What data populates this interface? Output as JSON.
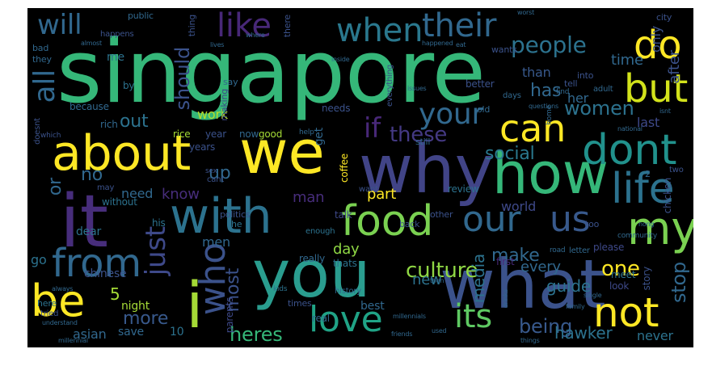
{
  "title": "",
  "words": [
    {
      "text": "singapore",
      "color": "#35b779",
      "vertical": false
    },
    {
      "text": "you",
      "color": "#2a9d8f",
      "vertical": false
    },
    {
      "text": "what",
      "color": "#3b528b",
      "vertical": false
    },
    {
      "text": "it",
      "color": "#472d7b",
      "vertical": false
    },
    {
      "text": "with",
      "color": "#2c728e",
      "vertical": false
    },
    {
      "text": "we",
      "color": "#fde725",
      "vertical": false
    },
    {
      "text": "why",
      "color": "#414487",
      "vertical": false
    },
    {
      "text": "how",
      "color": "#35b779",
      "vertical": false
    },
    {
      "text": "about",
      "color": "#fde725",
      "vertical": false
    },
    {
      "text": "food",
      "color": "#7ad151",
      "vertical": false
    },
    {
      "text": "i",
      "color": "#a5db36",
      "vertical": false
    },
    {
      "text": "life",
      "color": "#2c728e",
      "vertical": false
    },
    {
      "text": "my",
      "color": "#7ad151",
      "vertical": false
    },
    {
      "text": "dont",
      "color": "#21918c",
      "vertical": false
    },
    {
      "text": "our",
      "color": "#31688e",
      "vertical": false
    },
    {
      "text": "us",
      "color": "#38598c",
      "vertical": false
    },
    {
      "text": "from",
      "color": "#31688e",
      "vertical": false
    },
    {
      "text": "be",
      "color": "#fde725",
      "vertical": false
    },
    {
      "text": "love",
      "color": "#20a386",
      "vertical": false
    },
    {
      "text": "not",
      "color": "#fde725",
      "vertical": false
    },
    {
      "text": "can",
      "color": "#fde725",
      "vertical": false
    },
    {
      "text": "but",
      "color": "#d2e21b",
      "vertical": false
    },
    {
      "text": "do",
      "color": "#fde725",
      "vertical": false
    },
    {
      "text": "when",
      "color": "#2a788e",
      "vertical": false
    },
    {
      "text": "their",
      "color": "#31688e",
      "vertical": false
    },
    {
      "text": "like",
      "color": "#482878",
      "vertical": false
    },
    {
      "text": "will",
      "color": "#31688e",
      "vertical": false
    },
    {
      "text": "people",
      "color": "#2c728e",
      "vertical": false
    },
    {
      "text": "your",
      "color": "#31688e",
      "vertical": false
    },
    {
      "text": "who",
      "color": "#3b528b",
      "vertical": true
    },
    {
      "text": "just",
      "color": "#3e4989",
      "vertical": true
    },
    {
      "text": "all",
      "color": "#31688e",
      "vertical": true
    },
    {
      "text": "should",
      "color": "#3b528b",
      "vertical": true
    },
    {
      "text": "culture",
      "color": "#8fd744",
      "vertical": false
    },
    {
      "text": "its",
      "color": "#5ec962",
      "vertical": false
    },
    {
      "text": "heres",
      "color": "#35b779",
      "vertical": false
    },
    {
      "text": "women",
      "color": "#2c728e",
      "vertical": false
    },
    {
      "text": "being",
      "color": "#38598c",
      "vertical": false
    },
    {
      "text": "one",
      "color": "#fde725",
      "vertical": false
    },
    {
      "text": "make",
      "color": "#31688e",
      "vertical": false
    },
    {
      "text": "guide",
      "color": "#2c728e",
      "vertical": false
    },
    {
      "text": "stop",
      "color": "#31688e",
      "vertical": true
    },
    {
      "text": "if",
      "color": "#482878",
      "vertical": false
    },
    {
      "text": "these",
      "color": "#443983",
      "vertical": false
    },
    {
      "text": "social",
      "color": "#2a788e",
      "vertical": false
    },
    {
      "text": "media",
      "color": "#2c728e",
      "vertical": true
    },
    {
      "text": "most",
      "color": "#3b528b",
      "vertical": true
    },
    {
      "text": "more",
      "color": "#38598c",
      "vertical": false
    },
    {
      "text": "new",
      "color": "#2c728e",
      "vertical": false
    },
    {
      "text": "out",
      "color": "#2c728e",
      "vertical": false
    },
    {
      "text": "has",
      "color": "#31688e",
      "vertical": false
    },
    {
      "text": "work",
      "color": "#b5de2b",
      "vertical": false
    },
    {
      "text": "no",
      "color": "#31688e",
      "vertical": false
    },
    {
      "text": "or",
      "color": "#31688e",
      "vertical": true
    },
    {
      "text": "up",
      "color": "#31688e",
      "vertical": false
    },
    {
      "text": "know",
      "color": "#472d7b",
      "vertical": false
    },
    {
      "text": "men",
      "color": "#31688e",
      "vertical": false
    },
    {
      "text": "man",
      "color": "#472d7b",
      "vertical": false
    },
    {
      "text": "part",
      "color": "#fde725",
      "vertical": false
    },
    {
      "text": "day",
      "color": "#8fd744",
      "vertical": false
    },
    {
      "text": "world",
      "color": "#3e4989",
      "vertical": false
    },
    {
      "text": "every",
      "color": "#31688e",
      "vertical": false
    },
    {
      "text": "hawker",
      "color": "#2c728e",
      "vertical": false
    },
    {
      "text": "never",
      "color": "#2c728e",
      "vertical": false
    },
    {
      "text": "time",
      "color": "#31688e",
      "vertical": false
    },
    {
      "text": "than",
      "color": "#38598c",
      "vertical": false
    },
    {
      "text": "her",
      "color": "#31688e",
      "vertical": false
    },
    {
      "text": "last",
      "color": "#3e4989",
      "vertical": false
    },
    {
      "text": "after",
      "color": "#3b528b",
      "vertical": true
    },
    {
      "text": "only",
      "color": "#3b528b",
      "vertical": true
    },
    {
      "text": "chinese",
      "color": "#3b528b",
      "vertical": false
    },
    {
      "text": "asian",
      "color": "#31688e",
      "vertical": false
    },
    {
      "text": "save",
      "color": "#31688e",
      "vertical": false
    },
    {
      "text": "10",
      "color": "#2c728e",
      "vertical": false
    },
    {
      "text": "5",
      "color": "#a5db36",
      "vertical": false
    },
    {
      "text": "night",
      "color": "#a5db36",
      "vertical": false
    },
    {
      "text": "go",
      "color": "#2c728e",
      "vertical": false
    },
    {
      "text": "dear",
      "color": "#2c728e",
      "vertical": false
    },
    {
      "text": "need",
      "color": "#31688e",
      "vertical": false
    },
    {
      "text": "because",
      "color": "#31688e",
      "vertical": false
    },
    {
      "text": "rich",
      "color": "#31688e",
      "vertical": false
    },
    {
      "text": "rice",
      "color": "#a5db36",
      "vertical": false
    },
    {
      "text": "now",
      "color": "#31688e",
      "vertical": false
    },
    {
      "text": "good",
      "color": "#a5db36",
      "vertical": false
    },
    {
      "text": "year",
      "color": "#3b528b",
      "vertical": false
    },
    {
      "text": "years",
      "color": "#3b528b",
      "vertical": false
    },
    {
      "text": "get",
      "color": "#31688e",
      "vertical": true
    },
    {
      "text": "me",
      "color": "#2c728e",
      "vertical": false
    },
    {
      "text": "by",
      "color": "#2c728e",
      "vertical": false
    },
    {
      "text": "best",
      "color": "#31688e",
      "vertical": false
    },
    {
      "text": "real",
      "color": "#31688e",
      "vertical": false
    },
    {
      "text": "story",
      "color": "#3b528b",
      "vertical": true
    },
    {
      "text": "please",
      "color": "#3e4989",
      "vertical": false
    },
    {
      "text": "coffee",
      "color": "#fde725",
      "vertical": true
    },
    {
      "text": "talk",
      "color": "#3e4989",
      "vertical": false
    },
    {
      "text": "review",
      "color": "#2c728e",
      "vertical": false
    },
    {
      "text": "first",
      "color": "#482878",
      "vertical": false
    },
    {
      "text": "without",
      "color": "#2c728e",
      "vertical": false
    },
    {
      "text": "politics",
      "color": "#3b528b",
      "vertical": false
    },
    {
      "text": "parents",
      "color": "#3e4989",
      "vertical": true
    },
    {
      "text": "times",
      "color": "#3b528b",
      "vertical": false
    },
    {
      "text": "really",
      "color": "#31688e",
      "vertical": false
    },
    {
      "text": "thats",
      "color": "#2c728e",
      "vertical": false
    },
    {
      "text": "meet",
      "color": "#2c728e",
      "vertical": false
    },
    {
      "text": "look",
      "color": "#3e4989",
      "vertical": false
    },
    {
      "text": "chicken",
      "color": "#3b528b",
      "vertical": true
    },
    {
      "text": "public",
      "color": "#31688e",
      "vertical": false
    },
    {
      "text": "bad",
      "color": "#31688e",
      "vertical": false
    },
    {
      "text": "they",
      "color": "#31688e",
      "vertical": false
    },
    {
      "text": "thing",
      "color": "#3b528b",
      "vertical": true
    },
    {
      "text": "there",
      "color": "#3b528b",
      "vertical": true
    },
    {
      "text": "making",
      "color": "#3e4989",
      "vertical": true
    },
    {
      "text": "better",
      "color": "#3b528b",
      "vertical": false
    },
    {
      "text": "into",
      "color": "#3b528b",
      "vertical": false
    },
    {
      "text": "city",
      "color": "#3b528b",
      "vertical": false
    },
    {
      "text": "wants",
      "color": "#3b528b",
      "vertical": false
    },
    {
      "text": "say",
      "color": "#31688e",
      "vertical": false
    },
    {
      "text": "tell",
      "color": "#3b528b",
      "vertical": false
    },
    {
      "text": "needs",
      "color": "#3b528b",
      "vertical": false
    },
    {
      "text": "old",
      "color": "#31688e",
      "vertical": false
    },
    {
      "text": "still",
      "color": "#31688e",
      "vertical": false
    },
    {
      "text": "other",
      "color": "#3b528b",
      "vertical": false
    },
    {
      "text": "back",
      "color": "#3b528b",
      "vertical": false
    },
    {
      "text": "enough",
      "color": "#2c728e",
      "vertical": false
    },
    {
      "text": "his",
      "color": "#2c728e",
      "vertical": false
    },
    {
      "text": "he",
      "color": "#2c728e",
      "vertical": false
    },
    {
      "text": "here",
      "color": "#2c728e",
      "vertical": false
    },
    {
      "text": "tried",
      "color": "#3b528b",
      "vertical": false
    },
    {
      "text": "too",
      "color": "#3b528b",
      "vertical": false
    },
    {
      "text": "2",
      "color": "#31688e",
      "vertical": false
    },
    {
      "text": "two",
      "color": "#3b528b",
      "vertical": false
    },
    {
      "text": "doesnt",
      "color": "#3b528b",
      "vertical": true
    },
    {
      "text": "which",
      "color": "#3b528b",
      "vertical": false
    },
    {
      "text": "may",
      "color": "#3b528b",
      "vertical": false
    },
    {
      "text": "cant",
      "color": "#3b528b",
      "vertical": false
    },
    {
      "text": "want",
      "color": "#3b528b",
      "vertical": false
    },
    {
      "text": "happens",
      "color": "#3b528b",
      "vertical": false
    },
    {
      "text": "everything",
      "color": "#3b528b",
      "vertical": true
    },
    {
      "text": "adult",
      "color": "#31688e",
      "vertical": false
    },
    {
      "text": "days",
      "color": "#31688e",
      "vertical": false
    },
    {
      "text": "find",
      "color": "#31688e",
      "vertical": false
    },
    {
      "text": "home",
      "color": "#31688e",
      "vertical": true
    },
    {
      "text": "sex",
      "color": "#3b528b",
      "vertical": false
    },
    {
      "text": "help",
      "color": "#31688e",
      "vertical": false
    },
    {
      "text": "kids",
      "color": "#2c728e",
      "vertical": false
    },
    {
      "text": "history",
      "color": "#31688e",
      "vertical": false
    },
    {
      "text": "letter",
      "color": "#31688e",
      "vertical": false
    },
    {
      "text": "road",
      "color": "#31688e",
      "vertical": false
    },
    {
      "text": "community",
      "color": "#31688e",
      "vertical": false
    },
    {
      "text": "family",
      "color": "#31688e",
      "vertical": false
    },
    {
      "text": "single",
      "color": "#31688e",
      "vertical": false
    },
    {
      "text": "national",
      "color": "#31688e",
      "vertical": false
    },
    {
      "text": "isnt",
      "color": "#31688e",
      "vertical": false
    },
    {
      "text": "nong",
      "color": "#31688e",
      "vertical": false
    },
    {
      "text": "always",
      "color": "#31688e",
      "vertical": false
    },
    {
      "text": "friends",
      "color": "#31688e",
      "vertical": false
    },
    {
      "text": "millennials",
      "color": "#31688e",
      "vertical": false
    },
    {
      "text": "millennial",
      "color": "#31688e",
      "vertical": false
    },
    {
      "text": "things",
      "color": "#31688e",
      "vertical": false
    },
    {
      "text": "understand",
      "color": "#31688e",
      "vertical": false
    },
    {
      "text": "inside",
      "color": "#31688e",
      "vertical": false
    },
    {
      "text": "then",
      "color": "#31688e",
      "vertical": false
    },
    {
      "text": "lives",
      "color": "#31688e",
      "vertical": false
    },
    {
      "text": "eat",
      "color": "#31688e",
      "vertical": false
    },
    {
      "text": "happened",
      "color": "#31688e",
      "vertical": false
    },
    {
      "text": "where",
      "color": "#31688e",
      "vertical": false
    },
    {
      "text": "almost",
      "color": "#31688e",
      "vertical": false
    },
    {
      "text": "worst",
      "color": "#31688e",
      "vertical": false
    },
    {
      "text": "questions",
      "color": "#31688e",
      "vertical": false
    },
    {
      "text": "issues",
      "color": "#31688e",
      "vertical": false
    },
    {
      "text": "used",
      "color": "#31688e",
      "vertical": false
    },
    {
      "text": "drinks",
      "color": "#31688e",
      "vertical": true
    }
  ]
}
